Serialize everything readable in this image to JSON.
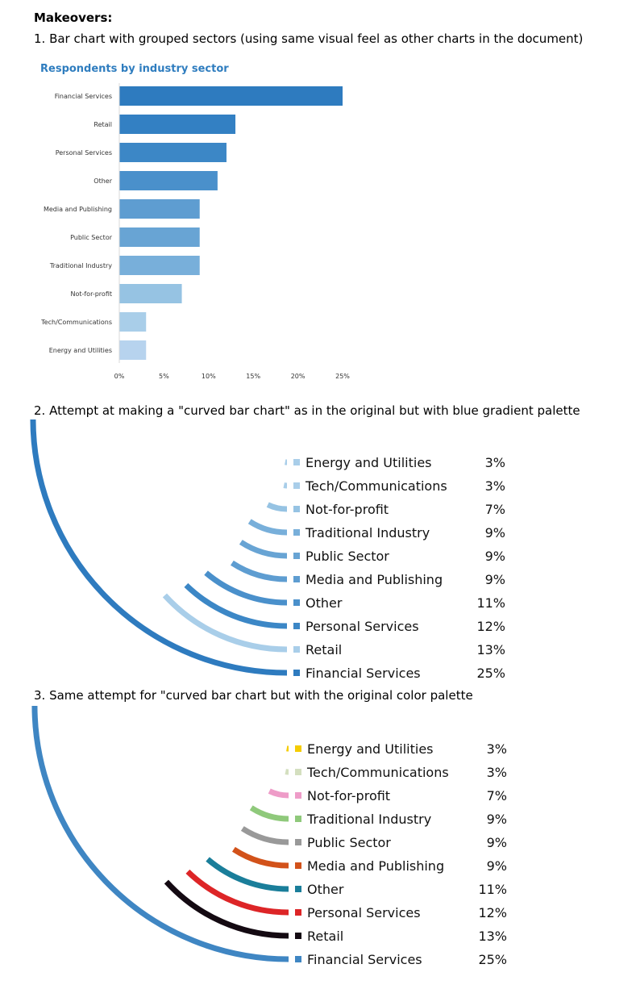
{
  "heading": "Makeovers:",
  "captions": {
    "bar": "1. Bar chart with grouped sectors (using same visual feel as other charts in the document)",
    "curved_blue": "2. Attempt at making a \"curved bar chart\" as in the original but with blue gradient palette",
    "curved_orig": "3. Same attempt for \"curved bar chart but with the original color palette"
  },
  "chart_data": [
    {
      "type": "bar",
      "orientation": "horizontal",
      "title": "Respondents by industry sector",
      "categories": [
        "Financial Services",
        "Retail",
        "Personal Services",
        "Other",
        "Media and Publishing",
        "Public Sector",
        "Traditional Industry",
        "Not-for-profit",
        "Tech/Communications",
        "Energy and Utilities"
      ],
      "values": [
        25,
        13,
        12,
        11,
        9,
        9,
        9,
        7,
        3,
        3
      ],
      "xticks": [
        "0%",
        "5%",
        "10%",
        "15%",
        "20%",
        "25%"
      ],
      "xlim": [
        0,
        25
      ],
      "colors": [
        "#2e7bbf",
        "#3380c3",
        "#3c87c6",
        "#4a90cb",
        "#5e9dd1",
        "#68a4d4",
        "#78afda",
        "#96c3e3",
        "#a9cee9",
        "#b7d3ee"
      ],
      "grid": false
    },
    {
      "type": "curved bar",
      "categories": [
        "Energy and Utilities",
        "Tech/Communications",
        "Not-for-profit",
        "Traditional Industry",
        "Public Sector",
        "Media and Publishing",
        "Other",
        "Personal Services",
        "Retail",
        "Financial Services"
      ],
      "values": [
        3,
        3,
        7,
        9,
        9,
        9,
        11,
        12,
        13,
        25
      ],
      "labels": [
        "3%",
        "3%",
        "7%",
        "9%",
        "9%",
        "9%",
        "11%",
        "12%",
        "13%",
        "25%"
      ],
      "colors": [
        "#a9cee9",
        "#a9cee9",
        "#96c3e3",
        "#78afda",
        "#68a4d4",
        "#5e9dd1",
        "#4a90cb",
        "#3c87c6",
        "#a9cee9",
        "#2e7bbf"
      ]
    },
    {
      "type": "curved bar",
      "categories": [
        "Energy and Utilities",
        "Tech/Communications",
        "Not-for-profit",
        "Traditional Industry",
        "Public Sector",
        "Media and Publishing",
        "Other",
        "Personal Services",
        "Retail",
        "Financial Services"
      ],
      "values": [
        3,
        3,
        7,
        9,
        9,
        9,
        11,
        12,
        13,
        25
      ],
      "labels": [
        "3%",
        "3%",
        "7%",
        "9%",
        "9%",
        "9%",
        "11%",
        "12%",
        "13%",
        "25%"
      ],
      "colors": [
        "#f5cc00",
        "#d4dfbf",
        "#ee9cc8",
        "#8fc97b",
        "#999999",
        "#d2521a",
        "#1a7e9a",
        "#dd2527",
        "#140a12",
        "#3f86c3"
      ]
    }
  ]
}
